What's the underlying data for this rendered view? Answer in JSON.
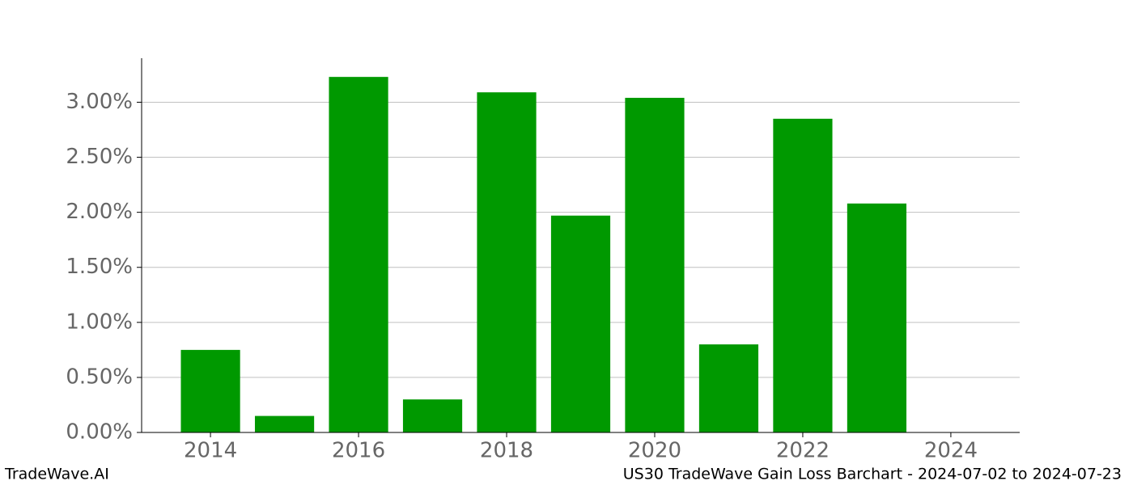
{
  "chart_data": {
    "type": "bar",
    "title": "US30 TradeWave Gain Loss Barchart - 2024-07-02 to 2024-07-23",
    "source": "TradeWave.AI",
    "x": [
      2014,
      2015,
      2016,
      2017,
      2018,
      2019,
      2020,
      2021,
      2022,
      2023
    ],
    "values": [
      0.75,
      0.15,
      3.23,
      0.3,
      3.09,
      1.97,
      3.04,
      0.8,
      2.85,
      2.08
    ],
    "color": "#009900",
    "xlim": [
      2013.07,
      2024.93
    ],
    "xticks": [
      2014,
      2016,
      2018,
      2020,
      2022,
      2024
    ],
    "ylim": [
      0,
      3.4
    ],
    "yticks": [
      {
        "value": 0,
        "label": "0.00%"
      },
      {
        "value": 0.5,
        "label": "0.50%"
      },
      {
        "value": 1,
        "label": "1.00%"
      },
      {
        "value": 1.5,
        "label": "1.50%"
      },
      {
        "value": 2,
        "label": "2.00%"
      },
      {
        "value": 2.5,
        "label": "2.50%"
      },
      {
        "value": 3,
        "label": "3.00%"
      }
    ],
    "grid": true
  }
}
